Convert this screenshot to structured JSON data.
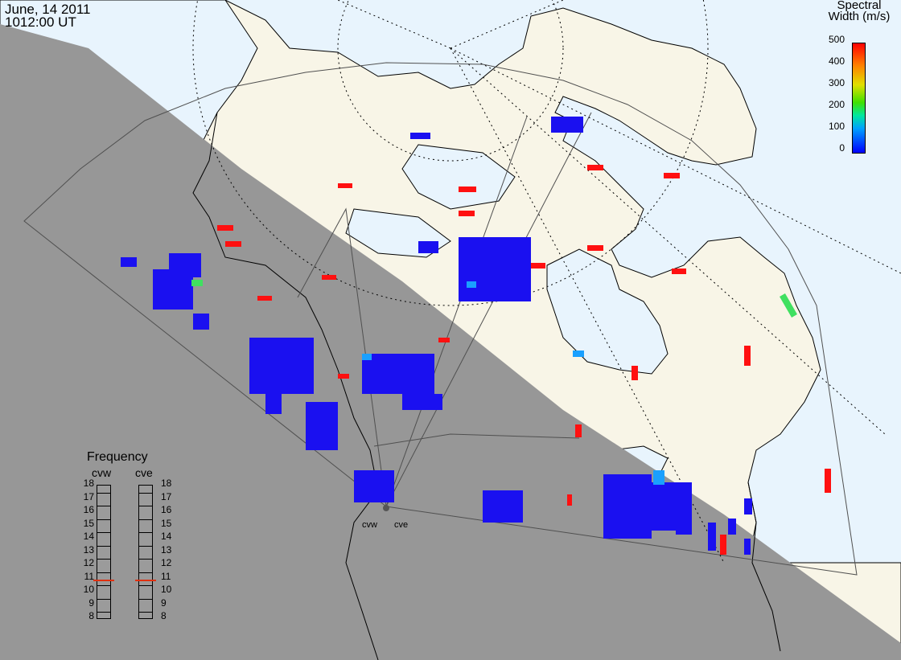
{
  "header": {
    "date": "June, 14 2011",
    "time": "1012:00 UT"
  },
  "colorbar": {
    "title_line1": "Spectral",
    "title_line2": "Width (m/s)",
    "ticks": [
      "500",
      "400",
      "300",
      "200",
      "100",
      "0"
    ],
    "colors": {
      "low": "#0000ff",
      "mid_low": "#00a0ff",
      "mid": "#40e000",
      "mid_high": "#e0e000",
      "high": "#ff0000"
    }
  },
  "frequency_panel": {
    "title": "Frequency",
    "col_left": "cvw",
    "col_right": "cve",
    "levels": [
      "18",
      "17",
      "16",
      "15",
      "14",
      "13",
      "12",
      "11",
      "10",
      "9",
      "8"
    ],
    "cvw_value": 10.8,
    "cve_value": 10.8
  },
  "sites": {
    "left": "cvw",
    "right": "cve"
  },
  "colors": {
    "night": "#979797",
    "land_day": "#f8f5e7",
    "ocean_day": "#e8f4fd",
    "echo_low": "#1a10f0",
    "echo_high": "#ff1010",
    "echo_mid": "#1aa0ff",
    "echo_green": "#40e060"
  }
}
